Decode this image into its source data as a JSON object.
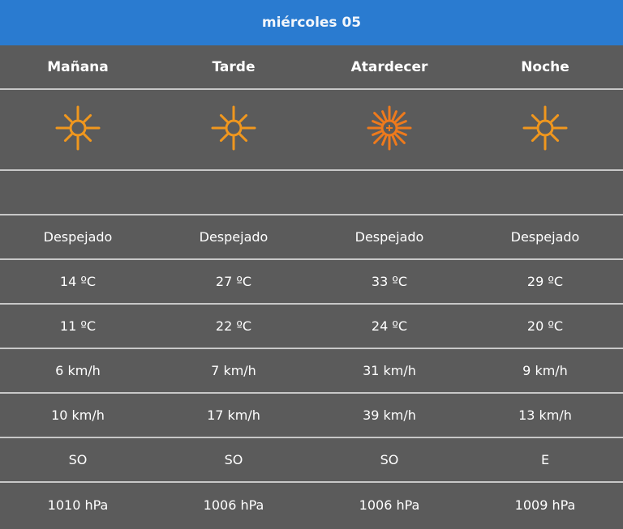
{
  "header": {
    "title": "miércoles 05"
  },
  "colors": {
    "header": "#2a7bd0",
    "background": "#5b5b5b",
    "sun": "#f0971e",
    "sunset": "#ee7a1c"
  },
  "periods": [
    {
      "name": "Mañana",
      "icon": "sun-icon",
      "sky": "Despejado",
      "temp_max": "14 ºC",
      "temp_min": "11 ºC",
      "wind": "6 km/h",
      "gust": "10 km/h",
      "direction": "SO",
      "pressure": "1010 hPa"
    },
    {
      "name": "Tarde",
      "icon": "sun-icon",
      "sky": "Despejado",
      "temp_max": "27 ºC",
      "temp_min": "22 ºC",
      "wind": "7 km/h",
      "gust": "17 km/h",
      "direction": "SO",
      "pressure": "1006 hPa"
    },
    {
      "name": "Atardecer",
      "icon": "sunset-sun-icon",
      "sky": "Despejado",
      "temp_max": "33 ºC",
      "temp_min": "24 ºC",
      "wind": "31 km/h",
      "gust": "39 km/h",
      "direction": "SO",
      "pressure": "1006 hPa"
    },
    {
      "name": "Noche",
      "icon": "sun-icon",
      "sky": "Despejado",
      "temp_max": "29 ºC",
      "temp_min": "20 ºC",
      "wind": "9 km/h",
      "gust": "13 km/h",
      "direction": "E",
      "pressure": "1009 hPa"
    }
  ]
}
